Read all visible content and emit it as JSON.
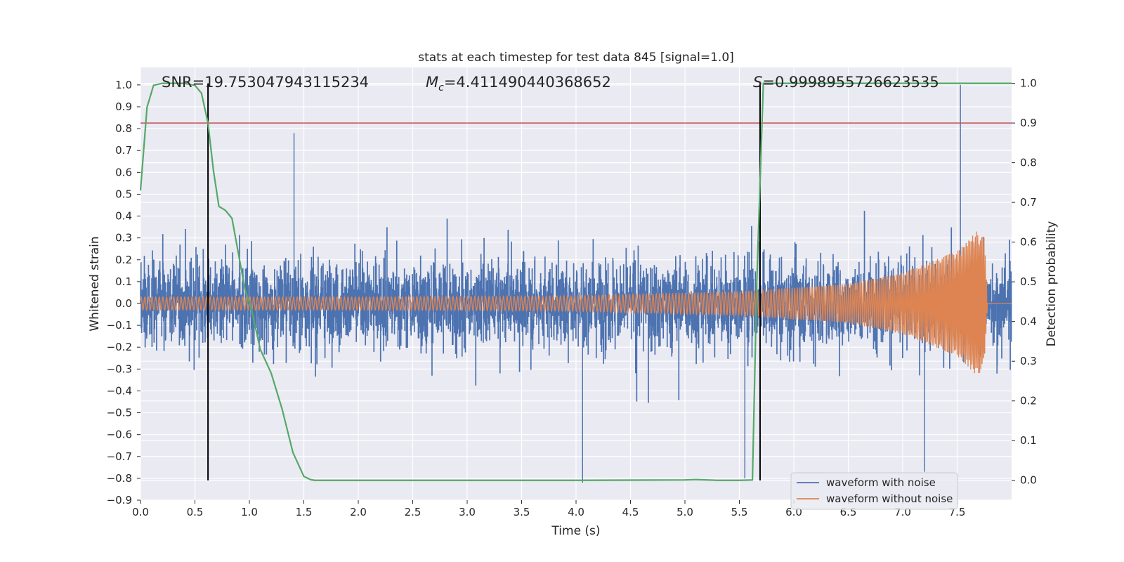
{
  "chart_data": {
    "type": "line",
    "title": "stats at each timestep for test data 845 [signal=1.0]",
    "xlabel": "Time (s)",
    "ylabel": "Whitened strain",
    "y2label": "Detection probability",
    "xlim": [
      0.0,
      8.0
    ],
    "ylim": [
      -0.9,
      1.08
    ],
    "y2lim": [
      -0.05,
      1.04
    ],
    "x_ticks": [
      "0.0",
      "0.5",
      "1.0",
      "1.5",
      "2.0",
      "2.5",
      "3.0",
      "3.5",
      "4.0",
      "4.5",
      "5.0",
      "5.5",
      "6.0",
      "6.5",
      "7.0",
      "7.5"
    ],
    "y_ticks": [
      "1.0",
      "0.9",
      "0.8",
      "0.7",
      "0.6",
      "0.5",
      "0.4",
      "0.3",
      "0.2",
      "0.1",
      "0.0",
      "−0.1",
      "−0.2",
      "−0.3",
      "−0.4",
      "−0.5",
      "−0.6",
      "−0.7",
      "−0.8",
      "−0.9"
    ],
    "y2_ticks": [
      "1.0",
      "0.9",
      "0.8",
      "0.7",
      "0.6",
      "0.5",
      "0.4",
      "0.3",
      "0.2",
      "0.1",
      "0.0"
    ],
    "grid": true,
    "legend_position": "lower-right",
    "annotations": {
      "snr": "SNR=19.753047943115234",
      "mc_symbol": "M",
      "mc_sub": "c",
      "mc_value": "=4.411490440368652",
      "s_symbol": "S",
      "s_value": "=0.9998955726623535"
    },
    "threshold_probability": 0.9,
    "vertical_markers": [
      0.62,
      5.69
    ],
    "series": [
      {
        "name": "waveform with noise",
        "color": "#4c72b0",
        "envelope_typical": 0.3,
        "notable_peaks": [
          [
            1.41,
            0.78
          ],
          [
            7.53,
            1.0
          ],
          [
            4.06,
            -0.82
          ],
          [
            5.55,
            -0.8
          ],
          [
            7.2,
            -0.77
          ]
        ]
      },
      {
        "name": "waveform without noise",
        "color": "#dd8452",
        "amplitude_points": [
          [
            0.0,
            0.03
          ],
          [
            2.0,
            0.03
          ],
          [
            4.0,
            0.035
          ],
          [
            5.5,
            0.055
          ],
          [
            6.5,
            0.09
          ],
          [
            7.0,
            0.14
          ],
          [
            7.3,
            0.2
          ],
          [
            7.5,
            0.24
          ],
          [
            7.68,
            0.33
          ],
          [
            7.75,
            0.3
          ],
          [
            7.78,
            0.0
          ],
          [
            8.0,
            0.0
          ]
        ]
      },
      {
        "name": "detection probability",
        "color": "#55a868",
        "axis": "right",
        "x": [
          0.0,
          0.06,
          0.12,
          0.2,
          0.3,
          0.4,
          0.5,
          0.56,
          0.62,
          0.67,
          0.72,
          0.78,
          0.84,
          0.9,
          0.96,
          1.02,
          1.1,
          1.2,
          1.3,
          1.4,
          1.5,
          1.56,
          1.6,
          2.0,
          3.0,
          4.0,
          5.0,
          5.1,
          5.3,
          5.5,
          5.62,
          5.66,
          5.72,
          5.8,
          6.0,
          7.0,
          8.0
        ],
        "values": [
          0.73,
          0.94,
          0.995,
          1.0,
          1.0,
          1.0,
          0.995,
          0.975,
          0.9,
          0.78,
          0.69,
          0.68,
          0.66,
          0.57,
          0.48,
          0.43,
          0.33,
          0.27,
          0.18,
          0.07,
          0.01,
          0.002,
          0.0,
          0.0,
          0.0,
          0.0,
          0.001,
          0.002,
          0.0,
          0.0,
          0.001,
          0.5,
          1.0,
          1.0,
          1.0,
          1.0,
          1.0
        ]
      }
    ]
  }
}
